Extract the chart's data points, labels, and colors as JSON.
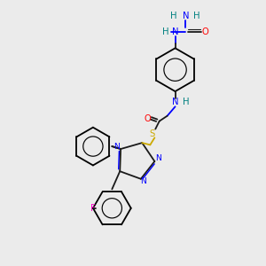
{
  "background_color": "#ebebeb",
  "atom_colors": {
    "C": "#1a1a1a",
    "N": "#0000ff",
    "O": "#ff0000",
    "S": "#ccaa00",
    "F": "#ff00cc",
    "H": "#008080"
  },
  "figsize": [
    3.0,
    3.0
  ],
  "dpi": 100
}
